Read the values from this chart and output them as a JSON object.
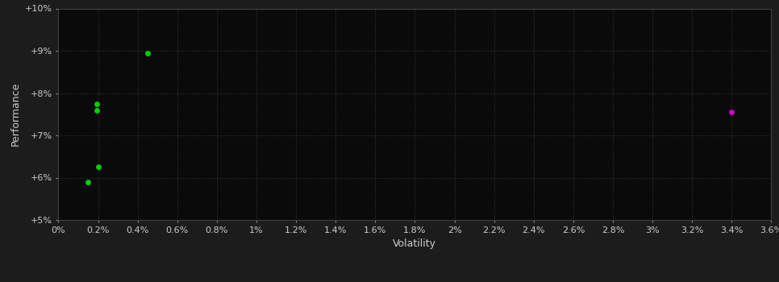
{
  "background_color": "#1c1c1c",
  "plot_bg_color": "#0a0a0a",
  "grid_color": "#404040",
  "grid_style": ":",
  "xlabel": "Volatility",
  "ylabel": "Performance",
  "xlim": [
    0.0,
    0.036
  ],
  "ylim": [
    0.05,
    0.1
  ],
  "yticks": [
    0.05,
    0.06,
    0.07,
    0.08,
    0.09,
    0.1
  ],
  "xticks": [
    0.0,
    0.002,
    0.004,
    0.006,
    0.008,
    0.01,
    0.012,
    0.014,
    0.016,
    0.018,
    0.02,
    0.022,
    0.024,
    0.026,
    0.028,
    0.03,
    0.032,
    0.034,
    0.036
  ],
  "xtick_labels": [
    "0%",
    "0.2%",
    "0.4%",
    "0.6%",
    "0.8%",
    "1%",
    "1.2%",
    "1.4%",
    "1.6%",
    "1.8%",
    "2%",
    "2.2%",
    "2.4%",
    "2.6%",
    "2.8%",
    "3%",
    "3.2%",
    "3.4%",
    "3.6%"
  ],
  "ytick_labels": [
    "+5%",
    "+6%",
    "+7%",
    "+8%",
    "+9%",
    "+10%"
  ],
  "green_dots": [
    [
      0.002,
      0.0625
    ],
    [
      0.0015,
      0.059
    ],
    [
      0.00195,
      0.0775
    ],
    [
      0.00195,
      0.076
    ],
    [
      0.0045,
      0.0895
    ]
  ],
  "magenta_dots": [
    [
      0.034,
      0.0755
    ]
  ],
  "dot_size": 25,
  "green_color": "#00cc00",
  "magenta_color": "#cc00cc",
  "tick_color": "#cccccc",
  "label_color": "#cccccc",
  "label_fontsize": 9,
  "tick_fontsize": 8
}
